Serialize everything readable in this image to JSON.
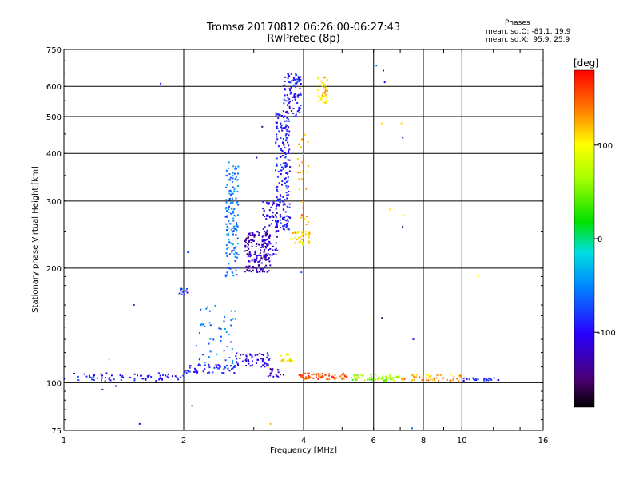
{
  "header": {
    "title": "Tromsø 20170812 06:26:00-06:27:43",
    "subtitle": "RwPretec (8p)"
  },
  "stats": {
    "heading": "Phases",
    "line_o": "mean, sd,O: -81.1, 19.9",
    "line_x": "mean, sd,X:  95.9, 25.9"
  },
  "chart_data": {
    "type": "scatter",
    "xlabel": "Frequency [MHz]",
    "ylabel": "Stationary phase Virtual Height [km]",
    "x_scale": "log",
    "y_scale": "log",
    "xlim": [
      1,
      16
    ],
    "ylim": [
      75,
      750
    ],
    "x_ticks": [
      1,
      2,
      4,
      6,
      8,
      10,
      16
    ],
    "y_ticks": [
      75,
      100,
      200,
      300,
      400,
      500,
      600,
      750
    ],
    "grid": true,
    "colorbar": {
      "label": "[deg]",
      "range": [
        -180,
        180
      ],
      "ticks": [
        100,
        0,
        -100
      ]
    },
    "clusters": [
      {
        "fmin": 1.0,
        "fmax": 2.0,
        "hmin": 101,
        "hmax": 106,
        "phase": -95,
        "n": 70
      },
      {
        "fmin": 2.0,
        "fmax": 2.7,
        "hmin": 106,
        "hmax": 112,
        "phase": -90,
        "n": 60
      },
      {
        "fmin": 2.7,
        "fmax": 3.3,
        "hmin": 110,
        "hmax": 120,
        "phase": -105,
        "n": 55
      },
      {
        "fmin": 2.15,
        "fmax": 2.7,
        "hmin": 112,
        "hmax": 160,
        "phase": -60,
        "n": 45
      },
      {
        "fmin": 2.55,
        "fmax": 2.75,
        "hmin": 190,
        "hmax": 380,
        "phase": -55,
        "n": 140
      },
      {
        "fmin": 2.85,
        "fmax": 3.3,
        "hmin": 195,
        "hmax": 250,
        "phase": -125,
        "n": 160
      },
      {
        "fmin": 3.15,
        "fmax": 3.45,
        "hmin": 215,
        "hmax": 300,
        "phase": -110,
        "n": 70
      },
      {
        "fmin": 3.4,
        "fmax": 3.7,
        "hmin": 250,
        "hmax": 520,
        "phase": -95,
        "n": 200
      },
      {
        "fmin": 3.55,
        "fmax": 3.95,
        "hmin": 500,
        "hmax": 650,
        "phase": -95,
        "n": 90
      },
      {
        "fmin": 1.95,
        "fmax": 2.05,
        "hmin": 170,
        "hmax": 177,
        "phase": -85,
        "n": 12
      },
      {
        "fmin": 3.7,
        "fmax": 4.15,
        "hmin": 230,
        "hmax": 250,
        "phase": 110,
        "n": 45
      },
      {
        "fmin": 3.85,
        "fmax": 4.15,
        "hmin": 260,
        "hmax": 450,
        "phase": 125,
        "n": 30
      },
      {
        "fmin": 4.35,
        "fmax": 4.6,
        "hmin": 540,
        "hmax": 640,
        "phase": 112,
        "n": 45
      },
      {
        "fmin": 3.5,
        "fmax": 3.75,
        "hmin": 113,
        "hmax": 119,
        "phase": 100,
        "n": 18
      },
      {
        "fmin": 3.25,
        "fmax": 3.6,
        "hmin": 103,
        "hmax": 109,
        "phase": -130,
        "n": 18
      },
      {
        "fmin": 3.9,
        "fmax": 5.2,
        "hmin": 102,
        "hmax": 106,
        "phase": 150,
        "n": 70
      },
      {
        "fmin": 5.2,
        "fmax": 7.0,
        "hmin": 101,
        "hmax": 105,
        "phase": 60,
        "n": 60
      },
      {
        "fmin": 7.0,
        "fmax": 10.0,
        "hmin": 101,
        "hmax": 105,
        "phase": 125,
        "n": 50
      },
      {
        "fmin": 10.0,
        "fmax": 12.5,
        "hmin": 101,
        "hmax": 103,
        "phase": -90,
        "n": 25
      }
    ],
    "isolated_points": [
      {
        "x": 1.75,
        "y": 610,
        "phase": -95
      },
      {
        "x": 6.1,
        "y": 680,
        "phase": -60
      },
      {
        "x": 6.35,
        "y": 660,
        "phase": -95
      },
      {
        "x": 6.4,
        "y": 615,
        "phase": -100
      },
      {
        "x": 6.3,
        "y": 480,
        "phase": 110
      },
      {
        "x": 7.05,
        "y": 480,
        "phase": 110
      },
      {
        "x": 7.1,
        "y": 440,
        "phase": -130
      },
      {
        "x": 6.6,
        "y": 285,
        "phase": 110
      },
      {
        "x": 7.15,
        "y": 275,
        "phase": 100
      },
      {
        "x": 7.1,
        "y": 257,
        "phase": -140
      },
      {
        "x": 11.0,
        "y": 190,
        "phase": 105
      },
      {
        "x": 6.3,
        "y": 148,
        "phase": -160
      },
      {
        "x": 7.55,
        "y": 130,
        "phase": -90
      },
      {
        "x": 1.5,
        "y": 160,
        "phase": -80
      },
      {
        "x": 1.3,
        "y": 115,
        "phase": 115
      },
      {
        "x": 1.55,
        "y": 78,
        "phase": -100
      },
      {
        "x": 2.1,
        "y": 87,
        "phase": -140
      },
      {
        "x": 3.3,
        "y": 78,
        "phase": 120
      },
      {
        "x": 7.5,
        "y": 76,
        "phase": -60
      },
      {
        "x": 2.05,
        "y": 220,
        "phase": -80
      },
      {
        "x": 3.95,
        "y": 195,
        "phase": -70
      },
      {
        "x": 3.05,
        "y": 390,
        "phase": -130
      },
      {
        "x": 3.15,
        "y": 470,
        "phase": -150
      },
      {
        "x": 1.35,
        "y": 98,
        "phase": -110
      },
      {
        "x": 1.25,
        "y": 96,
        "phase": -130
      }
    ]
  }
}
